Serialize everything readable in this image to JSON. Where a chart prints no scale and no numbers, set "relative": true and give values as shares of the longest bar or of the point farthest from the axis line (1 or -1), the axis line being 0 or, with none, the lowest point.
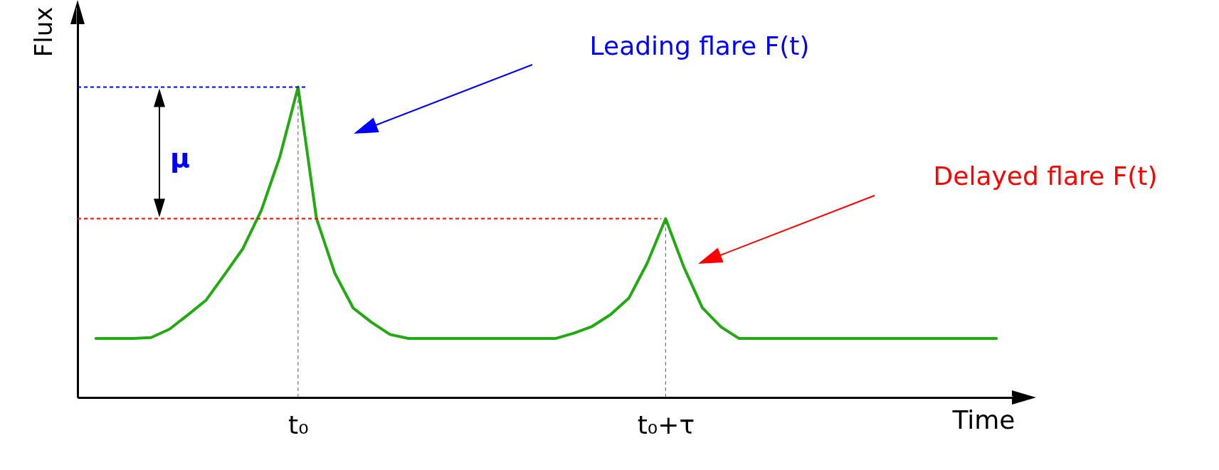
{
  "chart_data": {
    "type": "line",
    "relative": true,
    "xlabel": "Time",
    "ylabel": "Flux",
    "categories": [
      null,
      null,
      null,
      null,
      null,
      null,
      null,
      null,
      null,
      null,
      null,
      "t₀",
      null,
      null,
      null,
      null,
      null,
      null,
      null,
      null,
      null,
      null,
      null,
      null,
      null,
      null,
      null,
      null,
      null,
      null,
      null,
      "t₀+τ",
      null,
      null,
      null,
      null,
      null,
      null,
      null,
      null,
      null,
      null,
      null,
      null,
      null,
      null,
      null,
      null,
      null,
      null
    ],
    "series": [
      {
        "color": "#22aa11",
        "values": [
          0.19,
          0.19,
          0.19,
          0.193,
          0.22,
          0.266,
          0.314,
          0.396,
          0.48,
          0.603,
          0.774,
          1,
          0.577,
          0.4,
          0.288,
          0.242,
          0.203,
          0.19,
          0.19,
          0.19,
          0.19,
          0.19,
          0.19,
          0.19,
          0.19,
          0.19,
          0.207,
          0.229,
          0.267,
          0.32,
          0.433,
          0.576,
          0.419,
          0.289,
          0.228,
          0.19,
          0.19,
          0.19,
          0.19,
          0.19,
          0.19,
          0.19,
          0.19,
          0.19,
          0.19,
          0.19,
          0.19,
          0.19,
          0.19,
          0.19
        ]
      }
    ],
    "ref_lines": [
      {
        "axis": "y",
        "value": 1,
        "color": "#0000ff",
        "line_style": "dashed"
      },
      {
        "axis": "y",
        "value": 0.576,
        "color": "#ff0000",
        "line_style": "dashed"
      },
      {
        "axis": "x",
        "value": "t₀",
        "color": "#555555",
        "line_style": "dashed"
      },
      {
        "axis": "x",
        "value": "t₀+τ",
        "color": "#555555",
        "line_style": "dashed"
      }
    ],
    "annotations": [
      "μ",
      "Leading flare F(t)",
      "Delayed flare F(t)"
    ]
  }
}
